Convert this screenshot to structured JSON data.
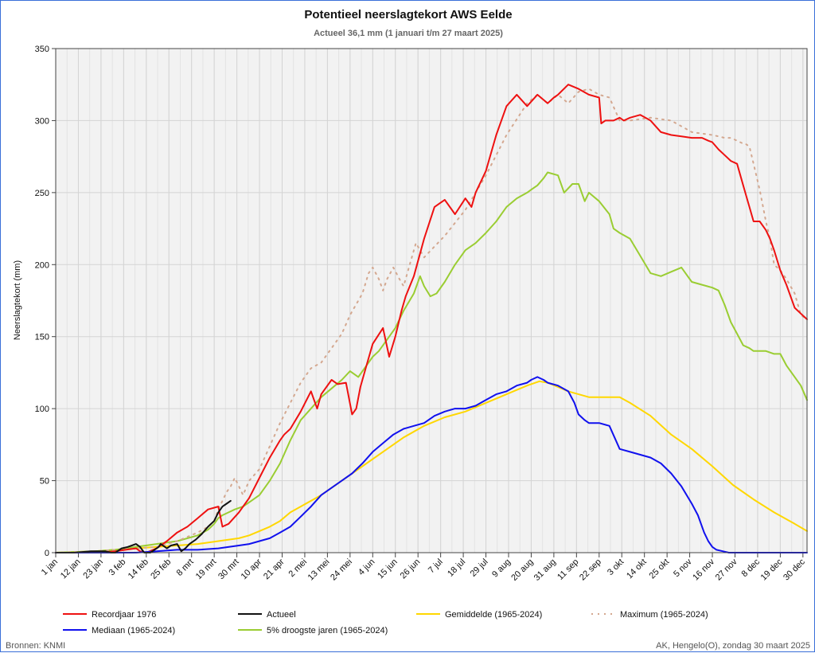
{
  "chart_data": {
    "type": "line",
    "title": "Potentieel neerslagtekort AWS Eelde",
    "subtitle": "Actueel 36,1 mm (1 januari t/m 27 maart 2025)",
    "ylabel": "Neerslagtekort (mm)",
    "xlabel": "",
    "ylim": [
      0,
      350
    ],
    "yticks": [
      0,
      50,
      100,
      150,
      200,
      250,
      300,
      350
    ],
    "xlim_day": [
      1,
      366
    ],
    "x_tick_labels": [
      "1 jan",
      "12 jan",
      "23 jan",
      "3 feb",
      "14 feb",
      "25 feb",
      "8 mrt",
      "19 mrt",
      "30 mrt",
      "10 apr",
      "21 apr",
      "2 mei",
      "13 mei",
      "24 mei",
      "4 jun",
      "15 jun",
      "26 jun",
      "7 jul",
      "18 jul",
      "29 jul",
      "9 aug",
      "20 aug",
      "31 aug",
      "11 sep",
      "22 sep",
      "3 okt",
      "14 okt",
      "25 okt",
      "5 nov",
      "16 nov",
      "27 nov",
      "8 dec",
      "19 dec",
      "30 dec"
    ],
    "x_tick_days": [
      1,
      12,
      23,
      34,
      45,
      56,
      67,
      78,
      89,
      100,
      111,
      122,
      133,
      144,
      155,
      166,
      177,
      188,
      199,
      210,
      221,
      232,
      243,
      254,
      265,
      276,
      287,
      298,
      309,
      320,
      331,
      342,
      353,
      364
    ],
    "grid": true,
    "legend_position": "bottom",
    "series": [
      {
        "name": "Recordjaar 1976",
        "color": "#ee1111",
        "dash": "",
        "width": 2,
        "x": [
          1,
          20,
          30,
          35,
          40,
          42,
          45,
          50,
          55,
          60,
          65,
          70,
          75,
          80,
          82,
          85,
          90,
          95,
          100,
          105,
          110,
          112,
          115,
          120,
          125,
          128,
          130,
          135,
          138,
          142,
          145,
          147,
          149,
          152,
          155,
          160,
          163,
          166,
          169,
          171,
          175,
          180,
          185,
          190,
          195,
          200,
          203,
          205,
          210,
          215,
          220,
          225,
          230,
          235,
          240,
          243,
          245,
          250,
          255,
          260,
          265,
          266,
          268,
          272,
          275,
          277,
          280,
          285,
          290,
          295,
          300,
          305,
          310,
          315,
          318,
          320,
          323,
          326,
          329,
          332,
          335,
          336,
          338,
          340,
          343,
          346,
          348,
          350,
          353,
          356,
          360,
          363,
          366
        ],
        "y": [
          0,
          0,
          1,
          2,
          3,
          1,
          0,
          3,
          8,
          14,
          18,
          24,
          30,
          32,
          18,
          20,
          28,
          38,
          52,
          66,
          78,
          82,
          86,
          98,
          112,
          100,
          110,
          120,
          117,
          118,
          96,
          100,
          115,
          130,
          145,
          156,
          136,
          150,
          168,
          178,
          192,
          218,
          240,
          245,
          235,
          246,
          240,
          250,
          265,
          290,
          310,
          318,
          310,
          318,
          312,
          316,
          318,
          325,
          322,
          318,
          316,
          298,
          300,
          300,
          302,
          300,
          302,
          304,
          300,
          292,
          290,
          289,
          288,
          288,
          286,
          285,
          280,
          276,
          272,
          270,
          255,
          250,
          240,
          230,
          230,
          224,
          218,
          210,
          196,
          186,
          170,
          166,
          162
        ]
      },
      {
        "name": "Actueel",
        "color": "#111111",
        "dash": "",
        "width": 2,
        "x": [
          1,
          10,
          18,
          25,
          28,
          30,
          33,
          36,
          38,
          40,
          42,
          44,
          47,
          49,
          51,
          52,
          55,
          57,
          60,
          62,
          64,
          66,
          69,
          72,
          75,
          78,
          80,
          82,
          84,
          86
        ],
        "y": [
          0,
          0,
          1,
          1,
          0,
          0,
          3,
          4,
          5,
          6,
          4,
          0,
          0,
          2,
          4,
          6,
          3,
          5,
          6,
          1,
          3,
          6,
          9,
          13,
          18,
          22,
          28,
          32,
          34,
          36
        ]
      },
      {
        "name": "Gemiddelde (1965-2024)",
        "color": "#ffd700",
        "dash": "",
        "width": 2,
        "x": [
          1,
          20,
          30,
          40,
          50,
          60,
          70,
          80,
          90,
          95,
          100,
          105,
          110,
          115,
          120,
          130,
          140,
          150,
          160,
          170,
          180,
          190,
          200,
          210,
          220,
          230,
          236,
          240,
          245,
          250,
          255,
          260,
          265,
          270,
          275,
          280,
          290,
          300,
          310,
          320,
          330,
          340,
          350,
          360,
          366
        ],
        "y": [
          0,
          1,
          2,
          3,
          4,
          5,
          6,
          8,
          10,
          12,
          15,
          18,
          22,
          28,
          32,
          40,
          50,
          60,
          70,
          80,
          88,
          94,
          98,
          104,
          110,
          116,
          119,
          118,
          115,
          112,
          110,
          108,
          108,
          108,
          108,
          104,
          95,
          82,
          72,
          60,
          47,
          37,
          28,
          20,
          15
        ]
      },
      {
        "name": "Maximum (1965-2024)",
        "color": "#d4a890",
        "dash": "2,6",
        "width": 2,
        "x": [
          1,
          20,
          30,
          40,
          50,
          60,
          70,
          75,
          78,
          80,
          82,
          84,
          86,
          88,
          92,
          95,
          100,
          105,
          110,
          115,
          120,
          125,
          130,
          135,
          140,
          144,
          150,
          153,
          155,
          158,
          160,
          162,
          165,
          168,
          170,
          173,
          176,
          180,
          190,
          200,
          210,
          220,
          230,
          235,
          240,
          245,
          250,
          255,
          260,
          265,
          270,
          275,
          280,
          290,
          300,
          310,
          320,
          323,
          326,
          329,
          332,
          335,
          336,
          338,
          340,
          343,
          346,
          348,
          350,
          353,
          356,
          360,
          363,
          366
        ],
        "y": [
          0,
          1,
          2,
          3,
          4,
          8,
          14,
          18,
          22,
          30,
          36,
          42,
          46,
          52,
          40,
          50,
          58,
          74,
          90,
          104,
          118,
          128,
          132,
          142,
          152,
          165,
          180,
          194,
          198,
          190,
          182,
          190,
          198,
          190,
          185,
          200,
          215,
          205,
          220,
          238,
          262,
          290,
          312,
          318,
          312,
          318,
          312,
          320,
          322,
          318,
          316,
          300,
          300,
          302,
          300,
          292,
          290,
          289,
          288,
          288,
          286,
          284,
          284,
          282,
          270,
          252,
          230,
          218,
          200,
          196,
          190,
          180,
          165,
          162
        ]
      },
      {
        "name": "Mediaan (1965-2024)",
        "color": "#1111ee",
        "dash": "",
        "width": 2,
        "x": [
          1,
          20,
          30,
          40,
          50,
          60,
          70,
          80,
          90,
          95,
          100,
          105,
          110,
          115,
          120,
          125,
          130,
          135,
          140,
          145,
          150,
          155,
          160,
          165,
          170,
          175,
          180,
          185,
          190,
          195,
          200,
          205,
          210,
          215,
          220,
          225,
          230,
          232,
          235,
          238,
          240,
          245,
          250,
          253,
          255,
          258,
          260,
          265,
          270,
          275,
          280,
          285,
          290,
          295,
          300,
          305,
          310,
          313,
          316,
          318,
          320,
          322,
          325,
          328,
          330,
          335,
          340,
          350,
          360,
          366
        ],
        "y": [
          0,
          0,
          0,
          0,
          1,
          2,
          2,
          3,
          5,
          6,
          8,
          10,
          14,
          18,
          25,
          32,
          40,
          45,
          50,
          55,
          62,
          70,
          76,
          82,
          86,
          88,
          90,
          95,
          98,
          100,
          100,
          102,
          106,
          110,
          112,
          116,
          118,
          120,
          122,
          120,
          118,
          116,
          112,
          104,
          96,
          92,
          90,
          90,
          88,
          72,
          70,
          68,
          66,
          62,
          55,
          46,
          34,
          26,
          14,
          8,
          4,
          2,
          1,
          0,
          0,
          0,
          0,
          0,
          0,
          0
        ]
      },
      {
        "name": "5% droogste jaren (1965-2024)",
        "color": "#9acd32",
        "dash": "",
        "width": 2,
        "x": [
          1,
          20,
          30,
          40,
          50,
          60,
          70,
          75,
          78,
          80,
          82,
          85,
          88,
          92,
          96,
          100,
          105,
          110,
          115,
          120,
          125,
          130,
          135,
          140,
          144,
          148,
          152,
          155,
          158,
          160,
          163,
          166,
          170,
          175,
          178,
          180,
          183,
          186,
          190,
          195,
          200,
          205,
          210,
          215,
          220,
          225,
          230,
          232,
          235,
          238,
          240,
          245,
          248,
          252,
          255,
          258,
          260,
          265,
          270,
          272,
          275,
          280,
          285,
          290,
          295,
          300,
          305,
          308,
          310,
          315,
          320,
          323,
          326,
          329,
          332,
          335,
          338,
          340,
          343,
          346,
          350,
          353,
          356,
          360,
          363,
          366
        ],
        "y": [
          0,
          1,
          2,
          4,
          6,
          8,
          12,
          16,
          20,
          24,
          26,
          28,
          30,
          32,
          36,
          40,
          50,
          62,
          78,
          92,
          100,
          108,
          114,
          120,
          126,
          122,
          130,
          136,
          140,
          144,
          150,
          156,
          168,
          180,
          192,
          185,
          178,
          180,
          188,
          200,
          210,
          215,
          222,
          230,
          240,
          246,
          250,
          252,
          255,
          260,
          264,
          262,
          250,
          256,
          256,
          244,
          250,
          244,
          235,
          225,
          222,
          218,
          206,
          194,
          192,
          195,
          198,
          192,
          188,
          186,
          184,
          182,
          172,
          160,
          152,
          144,
          142,
          140,
          140,
          140,
          138,
          138,
          130,
          122,
          116,
          106
        ]
      }
    ]
  },
  "footer": {
    "source": "Bronnen: KNMI",
    "credit": "AK, Hengelo(O), zondag 30 maart 2025"
  }
}
